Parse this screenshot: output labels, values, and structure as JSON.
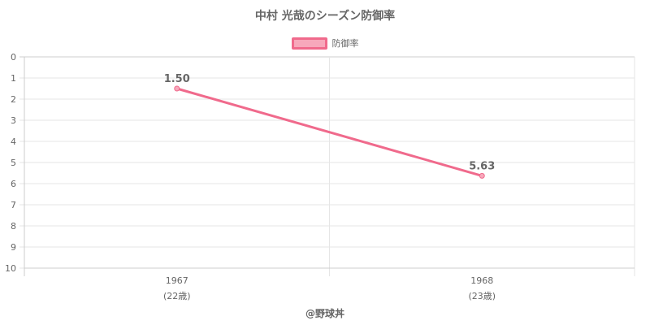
{
  "chart_data": {
    "type": "line",
    "title": "中村 光哉のシーズン防御率",
    "categories": [
      {
        "year": "1967",
        "age": "(22歳)"
      },
      {
        "year": "1968",
        "age": "(23歳)"
      }
    ],
    "series": [
      {
        "name": "防御率",
        "values": [
          1.5,
          5.63
        ],
        "labels": [
          "1.50",
          "5.63"
        ]
      }
    ],
    "y_ticks": [
      "0",
      "1",
      "2",
      "3",
      "4",
      "5",
      "6",
      "7",
      "8",
      "9",
      "10"
    ],
    "ylim": [
      0,
      10
    ],
    "y_reversed": true,
    "grid": true,
    "legend": "top-center",
    "colors": {
      "line": "#f06a8c",
      "fill": "#f7a8bb",
      "grid": "#e6e6e6",
      "axis": "#cccccc",
      "text": "#666666"
    }
  },
  "watermark": "@野球丼"
}
